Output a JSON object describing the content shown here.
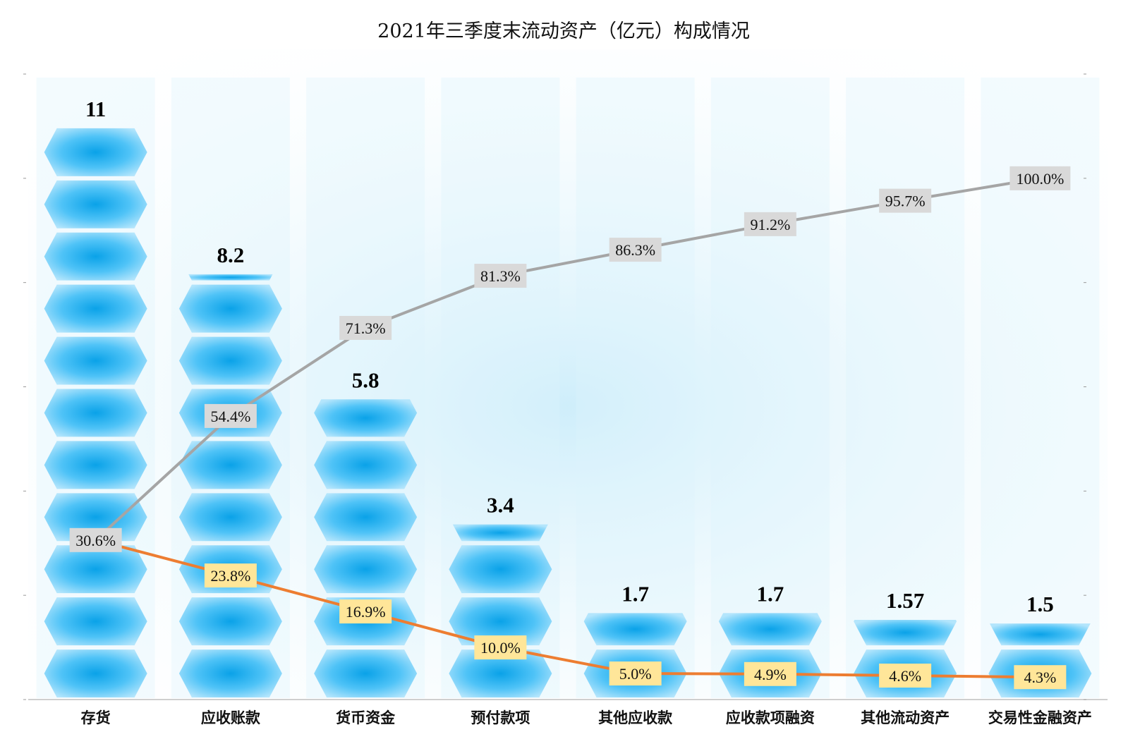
{
  "chart_data": {
    "type": "bar",
    "title": "2021年三季度末流动资产（亿元）构成情况",
    "categories": [
      "存货",
      "应收账款",
      "货币资金",
      "预付款项",
      "其他应收款",
      "应收款项融资",
      "其他流动资产",
      "交易性金融资产"
    ],
    "series": [
      {
        "kind": "bar",
        "values": [
          11,
          8.2,
          5.8,
          3.4,
          1.7,
          1.7,
          1.57,
          1.5
        ],
        "value_labels": [
          "11",
          "8.2",
          "5.8",
          "3.4",
          "1.7",
          "1.7",
          "1.57",
          "1.5"
        ],
        "color": "#29B6F6"
      },
      {
        "kind": "line",
        "values": [
          30.6,
          23.8,
          16.9,
          10.0,
          5.0,
          4.9,
          4.6,
          4.3
        ],
        "value_labels": [
          "30.6%",
          "23.8%",
          "16.9%",
          "10.0%",
          "5.0%",
          "4.9%",
          "4.6%",
          "4.3%"
        ],
        "color": "#ED7D31",
        "label_background": "#FFE699"
      },
      {
        "kind": "line",
        "values": [
          30.6,
          54.4,
          71.3,
          81.3,
          86.3,
          91.2,
          95.7,
          100.0
        ],
        "value_labels": [
          "30.6%",
          "54.4%",
          "71.3%",
          "81.3%",
          "86.3%",
          "91.2%",
          "95.7%",
          "100.0%"
        ],
        "color": "#A5A5A5",
        "label_background": "#D9D9D9"
      }
    ],
    "ylim_bar": [
      0,
      12
    ],
    "ylim_line": [
      0,
      120
    ],
    "grid": false,
    "legend": "none"
  }
}
